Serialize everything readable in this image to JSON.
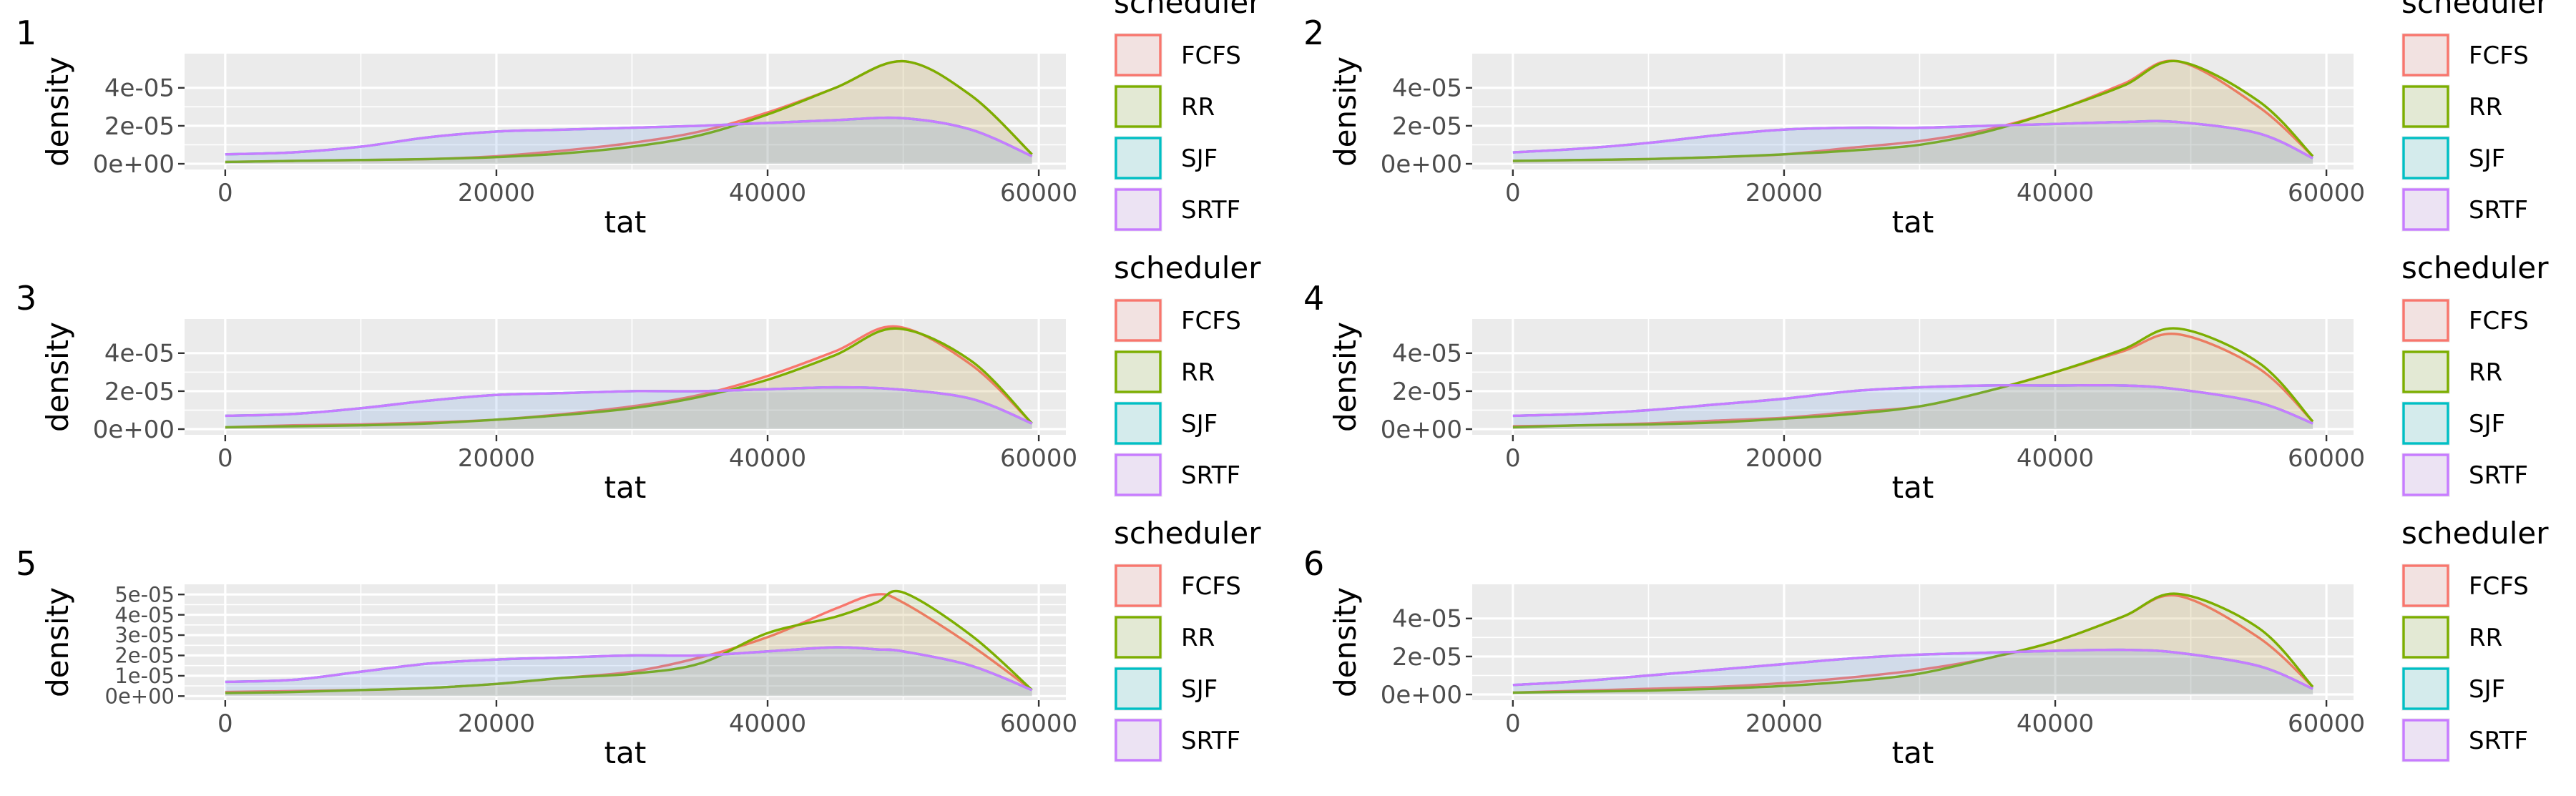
{
  "legend_title": "scheduler",
  "colors": {
    "FCFS": "#F8766D",
    "RR": "#7CAE00",
    "SJF": "#00BFC4",
    "SRTF": "#C77CFF",
    "panel_bg": "#EBEBEB",
    "grid": "#FFFFFF"
  },
  "chart_data": [
    {
      "panel_label": "1",
      "type": "area",
      "xlabel": "tat",
      "ylabel": "density",
      "xlim": [
        -3000,
        62000
      ],
      "ylim": [
        -3e-06,
        5.8e-05
      ],
      "xticks": [
        0,
        20000,
        40000,
        60000
      ],
      "xtick_labels": [
        "0",
        "20000",
        "40000",
        "60000"
      ],
      "yticks": [
        0,
        2e-05,
        4e-05
      ],
      "ytick_labels": [
        "0e+00",
        "2e-05",
        "4e-05"
      ],
      "legend": [
        "FCFS",
        "RR",
        "SJF",
        "SRTF"
      ],
      "x": [
        0,
        5000,
        10000,
        15000,
        20000,
        25000,
        30000,
        35000,
        40000,
        45000,
        50000,
        55000,
        59500
      ],
      "series": [
        {
          "name": "FCFS",
          "values": [
            1e-06,
            1.5e-06,
            2e-06,
            2.5e-06,
            4e-06,
            7e-06,
            1.1e-05,
            1.7e-05,
            2.7e-05,
            4e-05,
            5.4e-05,
            3.6e-05,
            5e-06
          ]
        },
        {
          "name": "RR",
          "values": [
            1e-06,
            1.5e-06,
            2e-06,
            2.5e-06,
            3.5e-06,
            5.5e-06,
            9e-06,
            1.5e-05,
            2.6e-05,
            4e-05,
            5.4e-05,
            3.6e-05,
            5e-06
          ]
        },
        {
          "name": "SJF",
          "values": [
            5e-06,
            6e-06,
            9e-06,
            1.4e-05,
            1.7e-05,
            1.8e-05,
            1.9e-05,
            2e-05,
            2.15e-05,
            2.3e-05,
            2.4e-05,
            1.8e-05,
            4e-06
          ]
        },
        {
          "name": "SRTF",
          "values": [
            5e-06,
            6e-06,
            9e-06,
            1.4e-05,
            1.7e-05,
            1.8e-05,
            1.9e-05,
            2e-05,
            2.15e-05,
            2.3e-05,
            2.4e-05,
            1.8e-05,
            4e-06
          ]
        }
      ]
    },
    {
      "panel_label": "2",
      "type": "area",
      "xlabel": "tat",
      "ylabel": "density",
      "xlim": [
        -3000,
        62000
      ],
      "ylim": [
        -3e-06,
        5.8e-05
      ],
      "xticks": [
        0,
        20000,
        40000,
        60000
      ],
      "xtick_labels": [
        "0",
        "20000",
        "40000",
        "60000"
      ],
      "yticks": [
        0,
        2e-05,
        4e-05
      ],
      "ytick_labels": [
        "0e+00",
        "2e-05",
        "4e-05"
      ],
      "legend": [
        "FCFS",
        "RR",
        "SJF",
        "SRTF"
      ],
      "x": [
        0,
        5000,
        10000,
        15000,
        20000,
        25000,
        30000,
        35000,
        40000,
        45000,
        49000,
        55000,
        59000
      ],
      "series": [
        {
          "name": "FCFS",
          "values": [
            1.5e-06,
            2e-06,
            2.5e-06,
            3.5e-06,
            5e-06,
            8.5e-06,
            1.2e-05,
            1.8e-05,
            2.8e-05,
            4.2e-05,
            5.4e-05,
            3e-05,
            4e-06
          ]
        },
        {
          "name": "RR",
          "values": [
            1.5e-06,
            2e-06,
            2.5e-06,
            3.5e-06,
            5e-06,
            7e-06,
            1e-05,
            1.7e-05,
            2.8e-05,
            4.1e-05,
            5.4e-05,
            3.3e-05,
            4e-06
          ]
        },
        {
          "name": "SJF",
          "values": [
            6e-06,
            8e-06,
            1.1e-05,
            1.5e-05,
            1.8e-05,
            1.9e-05,
            1.9e-05,
            2e-05,
            2.1e-05,
            2.2e-05,
            2.2e-05,
            1.6e-05,
            3e-06
          ]
        },
        {
          "name": "SRTF",
          "values": [
            6e-06,
            8e-06,
            1.1e-05,
            1.5e-05,
            1.8e-05,
            1.9e-05,
            1.9e-05,
            2e-05,
            2.1e-05,
            2.2e-05,
            2.2e-05,
            1.6e-05,
            3e-06
          ]
        }
      ]
    },
    {
      "panel_label": "3",
      "type": "area",
      "xlabel": "tat",
      "ylabel": "density",
      "xlim": [
        -3000,
        62000
      ],
      "ylim": [
        -3e-06,
        5.8e-05
      ],
      "xticks": [
        0,
        20000,
        40000,
        60000
      ],
      "xtick_labels": [
        "0",
        "20000",
        "40000",
        "60000"
      ],
      "yticks": [
        0,
        2e-05,
        4e-05
      ],
      "ytick_labels": [
        "0e+00",
        "2e-05",
        "4e-05"
      ],
      "legend": [
        "FCFS",
        "RR",
        "SJF",
        "SRTF"
      ],
      "x": [
        0,
        5000,
        10000,
        15000,
        20000,
        25000,
        30000,
        35000,
        40000,
        45000,
        49500,
        55000,
        59500
      ],
      "series": [
        {
          "name": "FCFS",
          "values": [
            1e-06,
            2e-06,
            2.5e-06,
            3.5e-06,
            5e-06,
            8e-06,
            1.2e-05,
            1.8e-05,
            2.8e-05,
            4.1e-05,
            5.4e-05,
            3.4e-05,
            3e-06
          ]
        },
        {
          "name": "RR",
          "values": [
            1e-06,
            1.5e-06,
            2e-06,
            3e-06,
            5e-06,
            7.5e-06,
            1.1e-05,
            1.7e-05,
            2.6e-05,
            3.9e-05,
            5.3e-05,
            3.6e-05,
            3e-06
          ]
        },
        {
          "name": "SJF",
          "values": [
            7e-06,
            8e-06,
            1.1e-05,
            1.5e-05,
            1.8e-05,
            1.9e-05,
            2e-05,
            2e-05,
            2.1e-05,
            2.2e-05,
            2.1e-05,
            1.6e-05,
            3e-06
          ]
        },
        {
          "name": "SRTF",
          "values": [
            7e-06,
            8e-06,
            1.1e-05,
            1.5e-05,
            1.8e-05,
            1.9e-05,
            2e-05,
            2e-05,
            2.1e-05,
            2.2e-05,
            2.1e-05,
            1.6e-05,
            3e-06
          ]
        }
      ]
    },
    {
      "panel_label": "4",
      "type": "area",
      "xlabel": "tat",
      "ylabel": "density",
      "xlim": [
        -3000,
        62000
      ],
      "ylim": [
        -3e-06,
        5.8e-05
      ],
      "xticks": [
        0,
        20000,
        40000,
        60000
      ],
      "xtick_labels": [
        "0",
        "20000",
        "40000",
        "60000"
      ],
      "yticks": [
        0,
        2e-05,
        4e-05
      ],
      "ytick_labels": [
        "0e+00",
        "2e-05",
        "4e-05"
      ],
      "legend": [
        "FCFS",
        "RR",
        "SJF",
        "SRTF"
      ],
      "x": [
        0,
        5000,
        10000,
        15000,
        20000,
        25000,
        30000,
        35000,
        40000,
        45000,
        49000,
        55000,
        59000
      ],
      "series": [
        {
          "name": "FCFS",
          "values": [
            1.5e-06,
            2e-06,
            3e-06,
            4.5e-06,
            6e-06,
            9e-06,
            1.2e-05,
            2e-05,
            3e-05,
            4.1e-05,
            5e-05,
            3.2e-05,
            4e-06
          ]
        },
        {
          "name": "RR",
          "values": [
            1e-06,
            2e-06,
            2.5e-06,
            3.5e-06,
            5.5e-06,
            8e-06,
            1.2e-05,
            2e-05,
            3e-05,
            4.2e-05,
            5.3e-05,
            3.5e-05,
            4e-06
          ]
        },
        {
          "name": "SJF",
          "values": [
            7e-06,
            8e-06,
            1e-05,
            1.3e-05,
            1.6e-05,
            2e-05,
            2.2e-05,
            2.3e-05,
            2.3e-05,
            2.3e-05,
            2.1e-05,
            1.4e-05,
            3e-06
          ]
        },
        {
          "name": "SRTF",
          "values": [
            7e-06,
            8e-06,
            1e-05,
            1.3e-05,
            1.6e-05,
            2e-05,
            2.2e-05,
            2.3e-05,
            2.3e-05,
            2.3e-05,
            2.1e-05,
            1.4e-05,
            3e-06
          ]
        }
      ]
    },
    {
      "panel_label": "5",
      "type": "area",
      "xlabel": "tat",
      "ylabel": "density",
      "xlim": [
        -3000,
        62000
      ],
      "ylim": [
        -2e-06,
        5.5e-05
      ],
      "xticks": [
        0,
        20000,
        40000,
        60000
      ],
      "xtick_labels": [
        "0",
        "20000",
        "40000",
        "60000"
      ],
      "yticks": [
        0,
        1e-05,
        2e-05,
        3e-05,
        4e-05,
        5e-05
      ],
      "ytick_labels": [
        "0e+00",
        "1e-05",
        "2e-05",
        "3e-05",
        "4e-05",
        "5e-05"
      ],
      "legend": [
        "FCFS",
        "RR",
        "SJF",
        "SRTF"
      ],
      "x": [
        0,
        5000,
        10000,
        15000,
        20000,
        25000,
        30000,
        35000,
        40000,
        45000,
        48000,
        50000,
        55000,
        59500
      ],
      "series": [
        {
          "name": "FCFS",
          "values": [
            2e-06,
            2.5e-06,
            3e-06,
            4e-06,
            6e-06,
            9e-06,
            1.2e-05,
            1.9e-05,
            2.9e-05,
            4.3e-05,
            5e-05,
            4.6e-05,
            2.5e-05,
            3e-06
          ]
        },
        {
          "name": "RR",
          "values": [
            1.5e-06,
            2e-06,
            3e-06,
            4e-06,
            6e-06,
            9e-06,
            1.1e-05,
            1.6e-05,
            3.1e-05,
            3.9e-05,
            4.6e-05,
            5.1e-05,
            3e-05,
            3e-06
          ]
        },
        {
          "name": "SJF",
          "values": [
            7e-06,
            8e-06,
            1.2e-05,
            1.6e-05,
            1.8e-05,
            1.9e-05,
            2e-05,
            2e-05,
            2.2e-05,
            2.4e-05,
            2.3e-05,
            2.2e-05,
            1.5e-05,
            3e-06
          ]
        },
        {
          "name": "SRTF",
          "values": [
            7e-06,
            8e-06,
            1.2e-05,
            1.6e-05,
            1.8e-05,
            1.9e-05,
            2e-05,
            2e-05,
            2.2e-05,
            2.4e-05,
            2.3e-05,
            2.2e-05,
            1.5e-05,
            3e-06
          ]
        }
      ]
    },
    {
      "panel_label": "6",
      "type": "area",
      "xlabel": "tat",
      "ylabel": "density",
      "xlim": [
        -3000,
        62000
      ],
      "ylim": [
        -3e-06,
        5.8e-05
      ],
      "xticks": [
        0,
        20000,
        40000,
        60000
      ],
      "xtick_labels": [
        "0",
        "20000",
        "40000",
        "60000"
      ],
      "yticks": [
        0,
        2e-05,
        4e-05
      ],
      "ytick_labels": [
        "0e+00",
        "2e-05",
        "4e-05"
      ],
      "legend": [
        "FCFS",
        "RR",
        "SJF",
        "SRTF"
      ],
      "x": [
        0,
        5000,
        10000,
        15000,
        20000,
        25000,
        30000,
        35000,
        40000,
        45000,
        49000,
        55000,
        59000
      ],
      "series": [
        {
          "name": "FCFS",
          "values": [
            1e-06,
            2e-06,
            3e-06,
            4e-06,
            6e-06,
            9e-06,
            1.3e-05,
            1.9e-05,
            2.8e-05,
            4.1e-05,
            5.2e-05,
            3e-05,
            4e-06
          ]
        },
        {
          "name": "RR",
          "values": [
            1e-06,
            1.5e-06,
            2e-06,
            3e-06,
            4.5e-06,
            7e-06,
            1.1e-05,
            1.9e-05,
            2.8e-05,
            4.1e-05,
            5.3e-05,
            3.5e-05,
            4e-06
          ]
        },
        {
          "name": "SJF",
          "values": [
            5e-06,
            7e-06,
            1e-05,
            1.3e-05,
            1.6e-05,
            1.9e-05,
            2.1e-05,
            2.2e-05,
            2.3e-05,
            2.35e-05,
            2.2e-05,
            1.5e-05,
            3e-06
          ]
        },
        {
          "name": "SRTF",
          "values": [
            5e-06,
            7e-06,
            1e-05,
            1.3e-05,
            1.6e-05,
            1.9e-05,
            2.1e-05,
            2.2e-05,
            2.3e-05,
            2.35e-05,
            2.2e-05,
            1.5e-05,
            3e-06
          ]
        }
      ]
    }
  ]
}
